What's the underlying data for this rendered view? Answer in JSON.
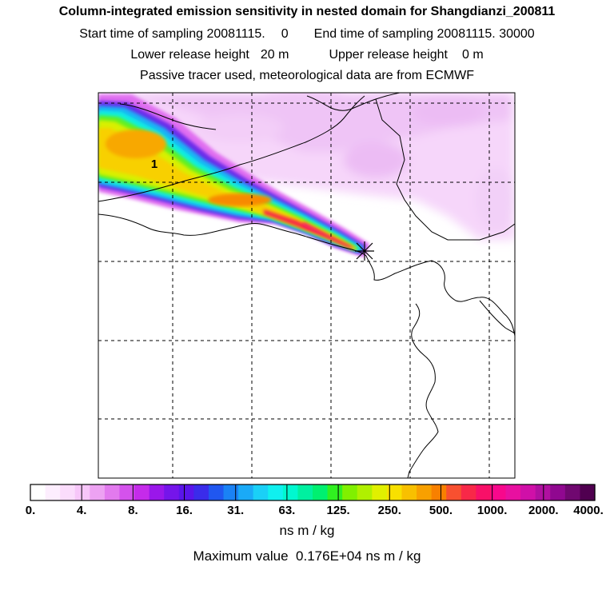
{
  "header": {
    "title": "Column-integrated emission sensitivity in nested domain for Shangdianzi_200811",
    "start_label": "Start time of sampling 20081115.",
    "start_value": "0",
    "end_label": "End time of sampling 20081115. 30000",
    "lower_label": "Lower release height",
    "lower_value": "20 m",
    "upper_label": "Upper release height",
    "upper_value": "0 m",
    "note": "Passive tracer used, meteorological data are from ECMWF"
  },
  "map": {
    "plume_label": "1",
    "release_marker": "x-star"
  },
  "colorbar": {
    "tick_labels": [
      "0.",
      "4.",
      "8.",
      "16.",
      "31.",
      "63.",
      "125.",
      "250.",
      "500.",
      "1000.",
      "2000.",
      "4000."
    ],
    "colors": [
      "#ffffff",
      "#fdeefe",
      "#fbdcfc",
      "#f7c6f9",
      "#eda2f2",
      "#e27aee",
      "#d452ec",
      "#c52bea",
      "#9a17ea",
      "#7515ea",
      "#5a15ea",
      "#3a2cea",
      "#2057f0",
      "#1a82f5",
      "#1aaaf7",
      "#1ad0f7",
      "#10f0ef",
      "#00f8d0",
      "#00f0a0",
      "#00f070",
      "#30f020",
      "#80f000",
      "#b0f000",
      "#e0f000",
      "#f8e000",
      "#f8c000",
      "#f8a000",
      "#f88000",
      "#f85030",
      "#f82848",
      "#f81068",
      "#f8088c",
      "#e810a0",
      "#d010a8",
      "#b010a0",
      "#900890",
      "#700870",
      "#500050"
    ],
    "unit": "ns m / kg"
  },
  "maximum": {
    "label": "Maximum value",
    "value": "0.176E+04",
    "unit": "ns m / kg"
  }
}
